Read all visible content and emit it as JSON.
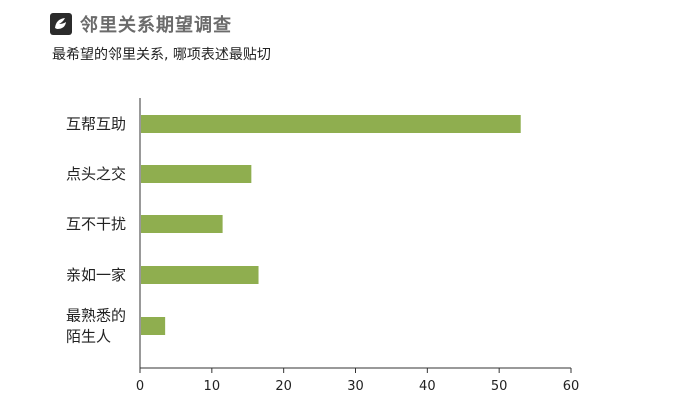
{
  "title": "邻里关系期望调查",
  "subtitle": "最希望的邻里关系, 哪项表述最贴切",
  "logo_icon": "publisher-logo-icon",
  "chart_data": {
    "type": "bar",
    "orientation": "horizontal",
    "categories": [
      "互帮互助",
      "点头之交",
      "互不干扰",
      "亲如一家",
      "最熟悉的陌生人"
    ],
    "category_lines": [
      [
        "互帮互助"
      ],
      [
        "点头之交"
      ],
      [
        "互不干扰"
      ],
      [
        "亲如一家"
      ],
      [
        "最熟悉的",
        "陌生人"
      ]
    ],
    "values": [
      53,
      15.5,
      11.5,
      16.5,
      3.5
    ],
    "xlim": [
      0,
      60
    ],
    "xticks": [
      0,
      10,
      20,
      30,
      40,
      50,
      60
    ],
    "bar_color": "#8fae4f",
    "axis_color": "#333333",
    "grid": false,
    "title": "",
    "xlabel": "",
    "ylabel": ""
  }
}
